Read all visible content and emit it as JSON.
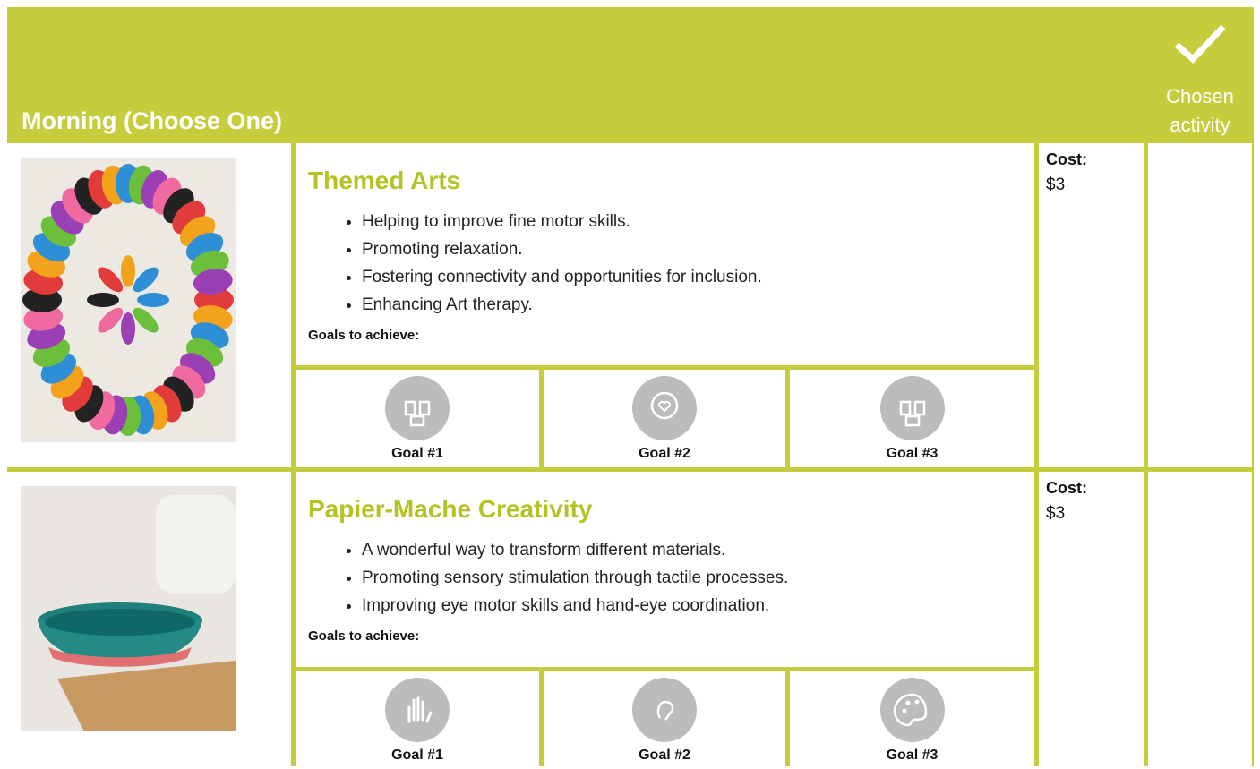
{
  "header": {
    "title": "Morning (Choose One)",
    "chosen_label": "Chosen activity"
  },
  "activities": [
    {
      "title": "Themed Arts",
      "bullets": [
        "Helping to improve fine motor skills.",
        "Promoting relaxation.",
        "Fostering connectivity and opportunities for inclusion.",
        "Enhancing Art therapy."
      ],
      "goals_label": "Goals to achieve:",
      "goals": [
        "Goal #1",
        "Goal #2",
        "Goal #3"
      ],
      "cost_label": "Cost:",
      "cost": "$3"
    },
    {
      "title": "Papier-Mache Creativity",
      "bullets": [
        "A wonderful way to transform different materials.",
        "Promoting sensory stimulation through tactile processes.",
        "Improving eye motor skills and hand-eye coordination."
      ],
      "goals_label": "Goals to achieve:",
      "goals": [
        "Goal #1",
        "Goal #2",
        "Goal #3"
      ],
      "cost_label": "Cost:",
      "cost": "$3"
    }
  ]
}
